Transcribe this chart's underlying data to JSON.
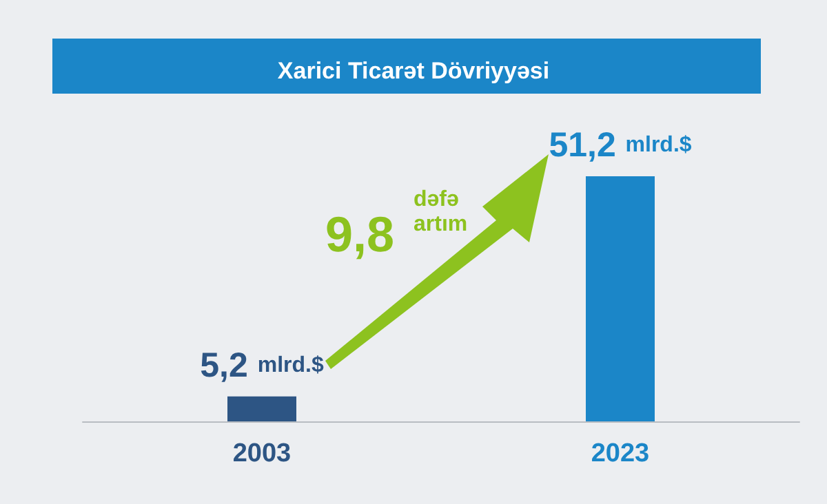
{
  "chart_data": {
    "type": "bar",
    "title": "Xarici Ticarət Dövriyyəsi",
    "categories": [
      "2003",
      "2023"
    ],
    "values": [
      5.2,
      51.2
    ],
    "colors": [
      "#2d5584",
      "#1b86c8"
    ],
    "value_labels": [
      "5,2 mlrd.$",
      "51,2 mlrd.$"
    ],
    "annotations": [
      "9,8 dəfə artım"
    ]
  }
}
